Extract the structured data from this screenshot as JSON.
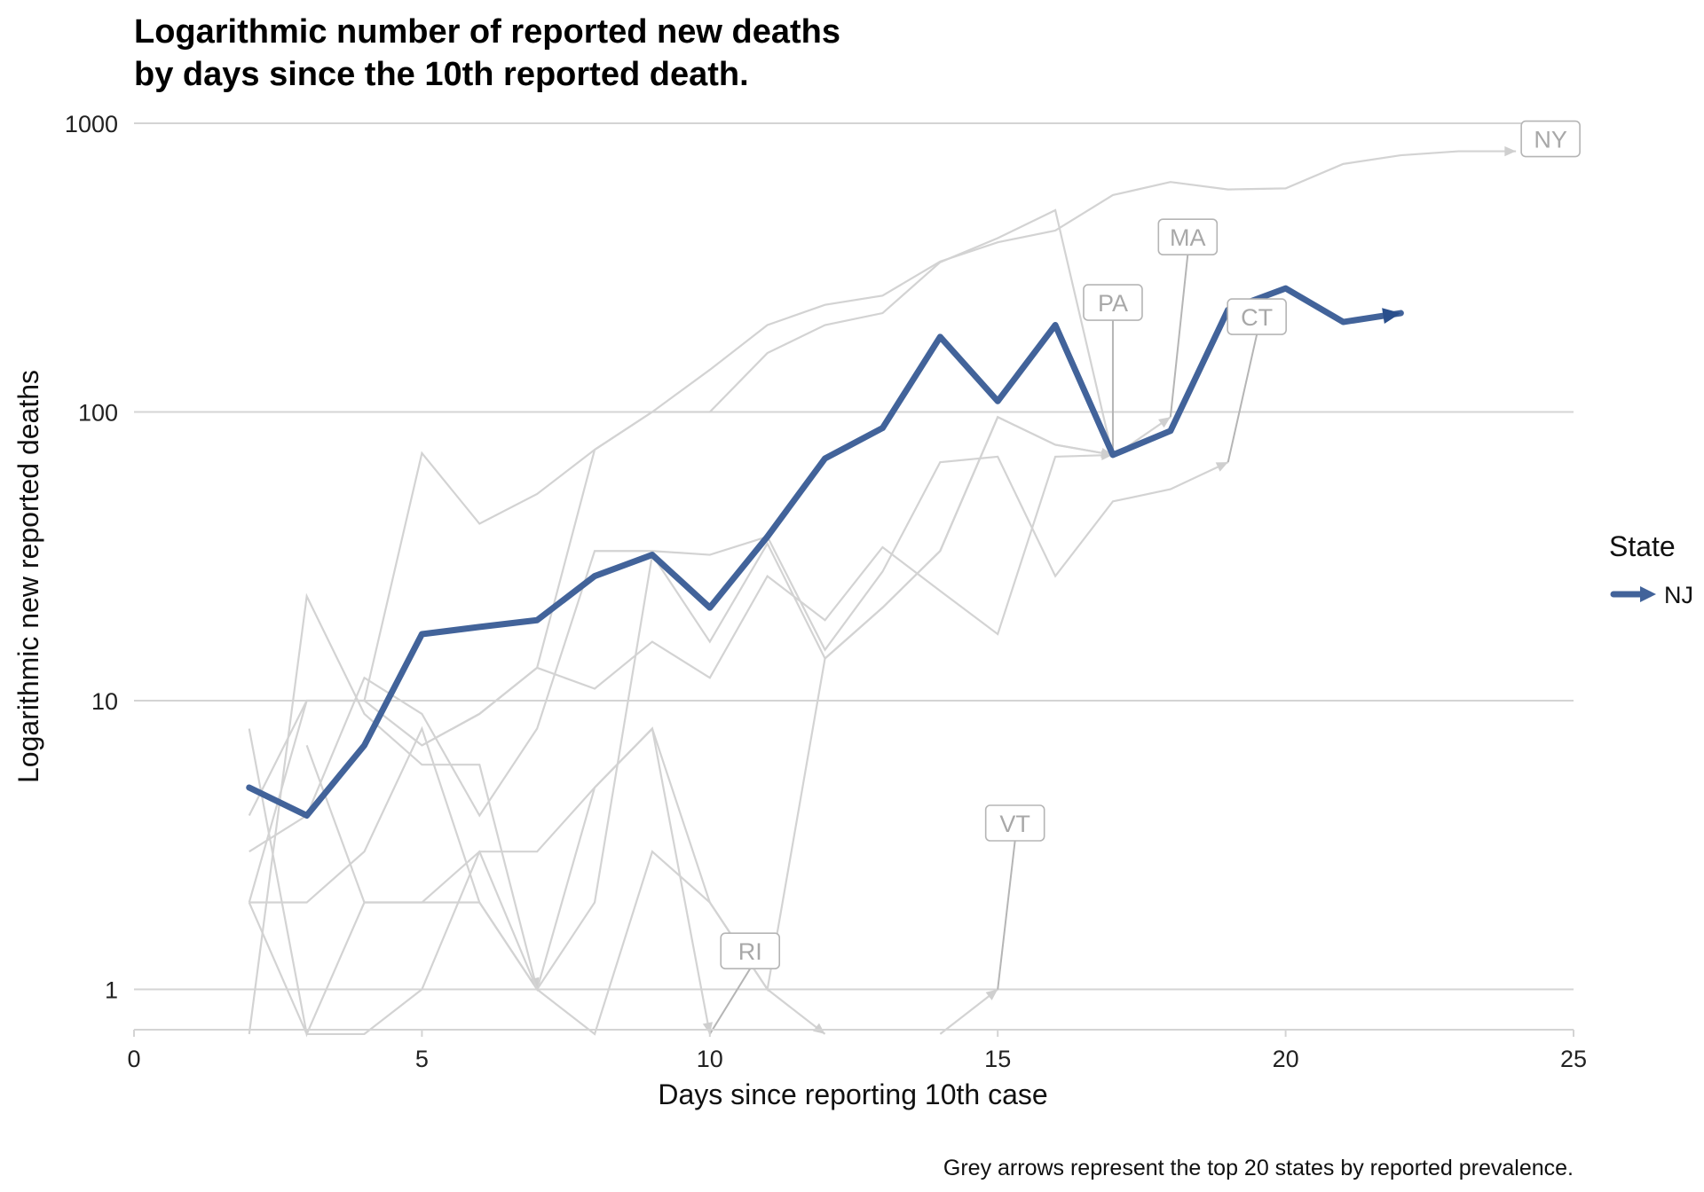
{
  "chart_data": {
    "type": "line",
    "title_lines": [
      "Logarithmic number of reported new deaths",
      "by days since the 10th reported death."
    ],
    "xlabel": "Days since reporting 10th case",
    "ylabel": "Logarithmic new reported deaths",
    "x_scale": "linear",
    "y_scale": "log10",
    "xlim": [
      0,
      25
    ],
    "ylim": [
      0.7,
      1000
    ],
    "x_ticks": [
      "0",
      "5",
      "10",
      "15",
      "20",
      "25"
    ],
    "y_ticks": [
      "1",
      "10",
      "100",
      "1000"
    ],
    "grid": "horizontal major",
    "legend": {
      "title": "State",
      "entries": [
        "NJ"
      ],
      "placement": "right"
    },
    "caption": "Grey arrows represent the top 20 states by reported prevalence.",
    "highlight_color": "#42639a",
    "background_color": "#d3d3d3",
    "highlight_series": {
      "name": "NJ",
      "x": [
        2,
        3,
        4,
        5,
        6,
        7,
        8,
        9,
        10,
        11,
        12,
        13,
        14,
        15,
        16,
        17,
        18,
        19,
        20,
        21,
        22
      ],
      "y": [
        5,
        4,
        7,
        17,
        18,
        19,
        27,
        32,
        21,
        37,
        69,
        88,
        182,
        109,
        200,
        71,
        86,
        226,
        268,
        205,
        220
      ]
    },
    "background_series": [
      {
        "name": "NY",
        "x": [
          5,
          6,
          7,
          8,
          9,
          10,
          11,
          12,
          13,
          14,
          15,
          16,
          17,
          18,
          19,
          20,
          21,
          22,
          23,
          24
        ],
        "y": [
          7,
          9,
          13,
          74,
          100,
          140,
          200,
          235,
          253,
          332,
          387,
          425,
          564,
          626,
          590,
          595,
          723,
          775,
          800,
          800
        ]
      },
      {
        "name": "MA",
        "x": [
          2,
          3,
          4,
          5,
          6,
          7,
          8,
          9,
          10,
          11,
          12,
          13,
          14,
          15,
          16,
          17,
          18
        ],
        "y": [
          4,
          10,
          10,
          72,
          41,
          52,
          74,
          100,
          100,
          160,
          200,
          220,
          330,
          400,
          500,
          70,
          96
        ]
      },
      {
        "name": "CT",
        "x": [
          2,
          3,
          4,
          5,
          6,
          7,
          8,
          9,
          10,
          11,
          12,
          13,
          14,
          15,
          16,
          17,
          18,
          19
        ],
        "y": [
          3,
          4,
          12,
          9,
          4,
          8,
          33,
          33,
          32,
          37,
          15,
          28,
          67,
          70,
          27,
          49,
          54,
          67
        ]
      },
      {
        "name": "PA",
        "x": [
          2,
          3,
          4,
          5,
          6,
          7,
          8,
          9,
          10,
          11,
          12,
          13,
          14,
          15,
          16,
          17
        ],
        "y": [
          2,
          10,
          10,
          7,
          9,
          13,
          11,
          16,
          12,
          27,
          19,
          34,
          24,
          17,
          70,
          71
        ]
      },
      {
        "name": "",
        "x": [
          2,
          3,
          4,
          5,
          6,
          7,
          8,
          9,
          10,
          11,
          12,
          13,
          14,
          15,
          16,
          17
        ],
        "y": [
          2,
          2,
          3,
          8,
          2,
          1,
          5,
          8,
          2,
          1,
          14,
          21,
          33,
          96,
          77,
          71
        ]
      },
      {
        "name": "",
        "x": [
          2,
          3,
          4,
          5,
          6,
          7,
          8,
          9,
          10,
          11,
          12,
          13,
          14,
          15,
          16,
          17
        ],
        "y": [
          8,
          0.7,
          2,
          2,
          2,
          1,
          2,
          32,
          16,
          35,
          14,
          21,
          33,
          96,
          77,
          71
        ]
      },
      {
        "name": "",
        "x": [
          2,
          3,
          4,
          5,
          6,
          7
        ],
        "y": [
          0.7,
          23,
          9,
          6,
          6,
          1
        ]
      },
      {
        "name": "",
        "x": [
          3,
          4,
          5,
          6,
          7,
          8,
          9,
          10,
          11,
          12
        ],
        "y": [
          7,
          2,
          2,
          3,
          1,
          0.7,
          3,
          2,
          1,
          0.7
        ]
      },
      {
        "name": "RI",
        "x": [
          2,
          3,
          4,
          5,
          6,
          7,
          8,
          9,
          10
        ],
        "y": [
          2,
          0.7,
          0.7,
          1,
          3,
          3,
          5,
          8,
          0.7
        ]
      },
      {
        "name": "VT",
        "x": [
          14,
          15
        ],
        "y": [
          0.7,
          1
        ]
      }
    ],
    "state_labels": [
      "NY",
      "MA",
      "PA",
      "CT",
      "VT",
      "RI"
    ]
  }
}
